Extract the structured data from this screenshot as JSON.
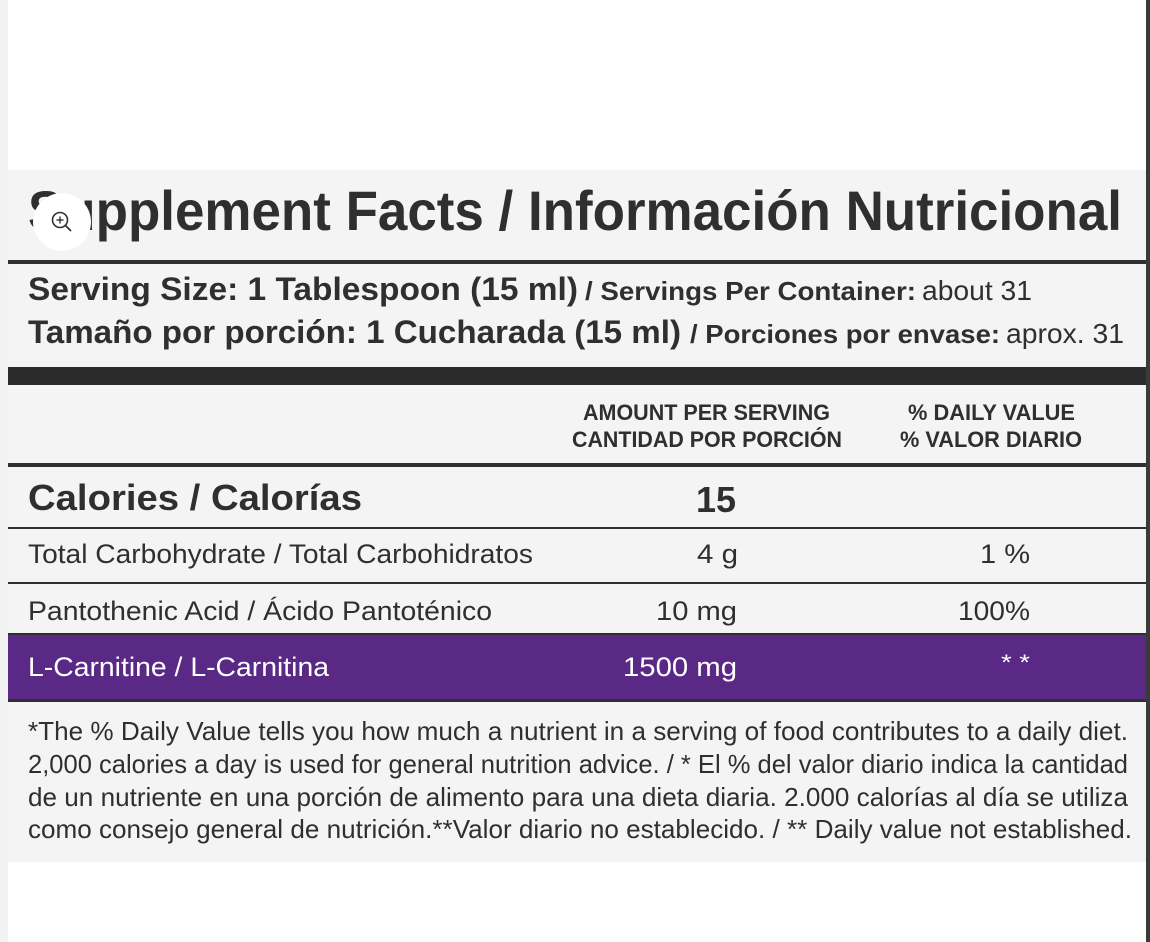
{
  "label": {
    "title": "Supplement Facts / Información Nutricional",
    "serving": [
      {
        "size": "Serving Size: 1 Tablespoon (15 ml)",
        "per_container": "/ Servings Per Container:",
        "amount": "about 31"
      },
      {
        "size": "Tamaño por porción: 1 Cucharada (15 ml)",
        "per_container": "/ Porciones por envase:",
        "amount": "aprox. 31"
      }
    ],
    "header": {
      "amount": [
        "AMOUNT PER SERVING",
        "CANTIDAD POR PORCIÓN"
      ],
      "daily_value": [
        "% DAILY VALUE",
        "% VALOR DIARIO"
      ]
    },
    "rows": [
      {
        "name": "Calories / Calorías",
        "amount": "15"
      },
      {
        "name": "Total Carbohydrate / Total Carbohidratos",
        "amount": "4 g",
        "daily_value": "1 %"
      },
      {
        "name": "Pantothenic Acid / Ácido Pantoténico",
        "amount": "10 mg",
        "daily_value": "100%"
      },
      {
        "name": "L-Carnitine / L-Carnitina",
        "amount": "1500 mg",
        "daily_value": "* *"
      }
    ],
    "footnote": [
      "*The % Daily Value tells you how much a nutrient in a serving of food contributes to a daily diet.",
      "2,000 calories a day is used for general nutrition advice. / * El % del valor diario indica la cantidad",
      "de un nutriente en una porción de alimento para una dieta diaria. 2.000 calorías al día se utiliza",
      "como consejo general de nutrición.**Valor diario no establecido. / ** Daily value not established."
    ]
  }
}
